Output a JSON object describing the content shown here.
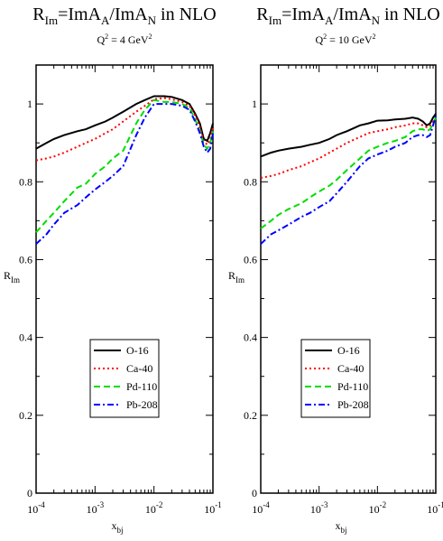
{
  "chart_data": [
    {
      "type": "line",
      "title": {
        "main": "R",
        "main_sub": "Im",
        "rest1": "=ImA",
        "rest1_sub": "A",
        "rest2": "/ImA",
        "rest2_sub": "N",
        "rest3": " in NLO"
      },
      "subtitle": {
        "q": "Q",
        "q_sup": "2",
        "value": " = 4 GeV",
        "value_sup": "2"
      },
      "xlabel": {
        "main": "x",
        "sub": "bj"
      },
      "ylabel": {
        "main": "R",
        "sub": "Im"
      },
      "xscale": "log",
      "xlim": [
        0.0001,
        0.1
      ],
      "ylim": [
        0,
        1.1
      ],
      "xticks": [
        {
          "value": 0.0001,
          "base": "10",
          "exp": "-4"
        },
        {
          "value": 0.001,
          "base": "10",
          "exp": "-3"
        },
        {
          "value": 0.01,
          "base": "10",
          "exp": "-2"
        },
        {
          "value": 0.1,
          "base": "10",
          "exp": "-1"
        }
      ],
      "yticks": [
        {
          "value": 0,
          "label": "0"
        },
        {
          "value": 0.2,
          "label": "0.2"
        },
        {
          "value": 0.4,
          "label": "0.4"
        },
        {
          "value": 0.6,
          "label": "0.6"
        },
        {
          "value": 0.8,
          "label": "0.8"
        },
        {
          "value": 1.0,
          "label": "1"
        }
      ],
      "grid": false,
      "legend_position": "lower-center",
      "series": [
        {
          "name": "O-16",
          "color": "#000000",
          "dash": "solid",
          "points": [
            [
              0.0001,
              0.885
            ],
            [
              0.00015,
              0.9
            ],
            [
              0.0002,
              0.91
            ],
            [
              0.0003,
              0.92
            ],
            [
              0.0005,
              0.93
            ],
            [
              0.0007,
              0.935
            ],
            [
              0.001,
              0.945
            ],
            [
              0.0015,
              0.955
            ],
            [
              0.002,
              0.965
            ],
            [
              0.003,
              0.98
            ],
            [
              0.005,
              1.0
            ],
            [
              0.007,
              1.01
            ],
            [
              0.01,
              1.02
            ],
            [
              0.015,
              1.02
            ],
            [
              0.02,
              1.018
            ],
            [
              0.03,
              1.01
            ],
            [
              0.04,
              1.0
            ],
            [
              0.05,
              0.975
            ],
            [
              0.06,
              0.95
            ],
            [
              0.07,
              0.91
            ],
            [
              0.08,
              0.905
            ],
            [
              0.09,
              0.925
            ],
            [
              0.1,
              0.95
            ]
          ]
        },
        {
          "name": "Ca-40",
          "color": "#ff0000",
          "dash": "dotted",
          "points": [
            [
              0.0001,
              0.855
            ],
            [
              0.00015,
              0.86
            ],
            [
              0.0002,
              0.865
            ],
            [
              0.0003,
              0.875
            ],
            [
              0.0005,
              0.89
            ],
            [
              0.0007,
              0.9
            ],
            [
              0.001,
              0.91
            ],
            [
              0.0015,
              0.925
            ],
            [
              0.002,
              0.935
            ],
            [
              0.003,
              0.955
            ],
            [
              0.005,
              0.98
            ],
            [
              0.007,
              0.995
            ],
            [
              0.01,
              1.012
            ],
            [
              0.015,
              1.015
            ],
            [
              0.02,
              1.012
            ],
            [
              0.03,
              1.005
            ],
            [
              0.04,
              0.995
            ],
            [
              0.05,
              0.97
            ],
            [
              0.06,
              0.94
            ],
            [
              0.07,
              0.905
            ],
            [
              0.08,
              0.895
            ],
            [
              0.09,
              0.91
            ],
            [
              0.1,
              0.94
            ]
          ]
        },
        {
          "name": "Pd-110",
          "color": "#00dd00",
          "dash": "dashed",
          "points": [
            [
              0.0001,
              0.67
            ],
            [
              0.00015,
              0.7
            ],
            [
              0.0002,
              0.72
            ],
            [
              0.0003,
              0.75
            ],
            [
              0.0005,
              0.785
            ],
            [
              0.0007,
              0.795
            ],
            [
              0.001,
              0.82
            ],
            [
              0.0015,
              0.84
            ],
            [
              0.002,
              0.86
            ],
            [
              0.003,
              0.88
            ],
            [
              0.005,
              0.95
            ],
            [
              0.007,
              0.985
            ],
            [
              0.01,
              1.01
            ],
            [
              0.015,
              1.005
            ],
            [
              0.02,
              1.005
            ],
            [
              0.03,
              1.0
            ],
            [
              0.04,
              0.99
            ],
            [
              0.05,
              0.96
            ],
            [
              0.06,
              0.93
            ],
            [
              0.07,
              0.895
            ],
            [
              0.08,
              0.885
            ],
            [
              0.09,
              0.9
            ],
            [
              0.1,
              0.93
            ]
          ]
        },
        {
          "name": "Pb-208",
          "color": "#0000ff",
          "dash": "dashdot",
          "points": [
            [
              0.0001,
              0.64
            ],
            [
              0.00015,
              0.665
            ],
            [
              0.0002,
              0.69
            ],
            [
              0.0003,
              0.72
            ],
            [
              0.0005,
              0.74
            ],
            [
              0.0007,
              0.76
            ],
            [
              0.001,
              0.78
            ],
            [
              0.0015,
              0.8
            ],
            [
              0.002,
              0.815
            ],
            [
              0.003,
              0.84
            ],
            [
              0.005,
              0.92
            ],
            [
              0.007,
              0.965
            ],
            [
              0.01,
              1.0
            ],
            [
              0.015,
              1.0
            ],
            [
              0.02,
              1.0
            ],
            [
              0.03,
              0.995
            ],
            [
              0.04,
              0.985
            ],
            [
              0.05,
              0.955
            ],
            [
              0.06,
              0.925
            ],
            [
              0.07,
              0.89
            ],
            [
              0.08,
              0.875
            ],
            [
              0.09,
              0.885
            ],
            [
              0.1,
              0.925
            ]
          ]
        }
      ]
    },
    {
      "type": "line",
      "title": {
        "main": "R",
        "main_sub": "Im",
        "rest1": "=ImA",
        "rest1_sub": "A",
        "rest2": "/ImA",
        "rest2_sub": "N",
        "rest3": " in NLO"
      },
      "subtitle": {
        "q": "Q",
        "q_sup": "2",
        "value": " = 10 GeV",
        "value_sup": "2"
      },
      "xlabel": {
        "main": "x",
        "sub": "bj"
      },
      "ylabel": {
        "main": "R",
        "sub": "Im"
      },
      "xscale": "log",
      "xlim": [
        0.0001,
        0.1
      ],
      "ylim": [
        0,
        1.1
      ],
      "xticks": [
        {
          "value": 0.0001,
          "base": "10",
          "exp": "-4"
        },
        {
          "value": 0.001,
          "base": "10",
          "exp": "-3"
        },
        {
          "value": 0.01,
          "base": "10",
          "exp": "-2"
        },
        {
          "value": 0.1,
          "base": "10",
          "exp": "-1"
        }
      ],
      "yticks": [
        {
          "value": 0,
          "label": "0"
        },
        {
          "value": 0.2,
          "label": "0.2"
        },
        {
          "value": 0.4,
          "label": "0.4"
        },
        {
          "value": 0.6,
          "label": "0.6"
        },
        {
          "value": 0.8,
          "label": "0.8"
        },
        {
          "value": 1.0,
          "label": "1"
        }
      ],
      "grid": false,
      "legend_position": "lower-center",
      "series": [
        {
          "name": "O-16",
          "color": "#000000",
          "dash": "solid",
          "points": [
            [
              0.0001,
              0.865
            ],
            [
              0.00015,
              0.875
            ],
            [
              0.0002,
              0.88
            ],
            [
              0.0003,
              0.885
            ],
            [
              0.0005,
              0.89
            ],
            [
              0.0007,
              0.895
            ],
            [
              0.001,
              0.9
            ],
            [
              0.0015,
              0.91
            ],
            [
              0.002,
              0.92
            ],
            [
              0.003,
              0.93
            ],
            [
              0.005,
              0.945
            ],
            [
              0.007,
              0.95
            ],
            [
              0.01,
              0.957
            ],
            [
              0.015,
              0.958
            ],
            [
              0.02,
              0.96
            ],
            [
              0.03,
              0.962
            ],
            [
              0.04,
              0.965
            ],
            [
              0.05,
              0.962
            ],
            [
              0.06,
              0.955
            ],
            [
              0.07,
              0.945
            ],
            [
              0.08,
              0.95
            ],
            [
              0.09,
              0.965
            ],
            [
              0.1,
              0.975
            ]
          ]
        },
        {
          "name": "Ca-40",
          "color": "#ff0000",
          "dash": "dotted",
          "points": [
            [
              0.0001,
              0.81
            ],
            [
              0.00015,
              0.815
            ],
            [
              0.0002,
              0.82
            ],
            [
              0.0003,
              0.83
            ],
            [
              0.0005,
              0.84
            ],
            [
              0.0007,
              0.85
            ],
            [
              0.001,
              0.86
            ],
            [
              0.0015,
              0.875
            ],
            [
              0.002,
              0.885
            ],
            [
              0.003,
              0.9
            ],
            [
              0.005,
              0.915
            ],
            [
              0.007,
              0.925
            ],
            [
              0.01,
              0.93
            ],
            [
              0.015,
              0.935
            ],
            [
              0.02,
              0.94
            ],
            [
              0.03,
              0.945
            ],
            [
              0.04,
              0.95
            ],
            [
              0.05,
              0.95
            ],
            [
              0.06,
              0.945
            ],
            [
              0.07,
              0.94
            ],
            [
              0.08,
              0.945
            ],
            [
              0.09,
              0.955
            ],
            [
              0.1,
              0.96
            ]
          ]
        },
        {
          "name": "Pd-110",
          "color": "#00dd00",
          "dash": "dashed",
          "points": [
            [
              0.0001,
              0.68
            ],
            [
              0.00015,
              0.7
            ],
            [
              0.0002,
              0.715
            ],
            [
              0.0003,
              0.73
            ],
            [
              0.0005,
              0.745
            ],
            [
              0.0007,
              0.76
            ],
            [
              0.001,
              0.775
            ],
            [
              0.0015,
              0.79
            ],
            [
              0.002,
              0.805
            ],
            [
              0.003,
              0.83
            ],
            [
              0.005,
              0.86
            ],
            [
              0.007,
              0.88
            ],
            [
              0.01,
              0.89
            ],
            [
              0.015,
              0.9
            ],
            [
              0.02,
              0.905
            ],
            [
              0.03,
              0.915
            ],
            [
              0.04,
              0.93
            ],
            [
              0.05,
              0.935
            ],
            [
              0.06,
              0.935
            ],
            [
              0.07,
              0.93
            ],
            [
              0.08,
              0.935
            ],
            [
              0.09,
              0.95
            ],
            [
              0.1,
              0.965
            ]
          ]
        },
        {
          "name": "Pb-208",
          "color": "#0000ff",
          "dash": "dashdot",
          "points": [
            [
              0.0001,
              0.64
            ],
            [
              0.00015,
              0.665
            ],
            [
              0.0002,
              0.675
            ],
            [
              0.0003,
              0.69
            ],
            [
              0.0005,
              0.71
            ],
            [
              0.0007,
              0.72
            ],
            [
              0.001,
              0.735
            ],
            [
              0.0015,
              0.75
            ],
            [
              0.002,
              0.77
            ],
            [
              0.003,
              0.8
            ],
            [
              0.005,
              0.84
            ],
            [
              0.007,
              0.86
            ],
            [
              0.01,
              0.87
            ],
            [
              0.015,
              0.88
            ],
            [
              0.02,
              0.89
            ],
            [
              0.03,
              0.9
            ],
            [
              0.04,
              0.915
            ],
            [
              0.05,
              0.92
            ],
            [
              0.06,
              0.92
            ],
            [
              0.07,
              0.915
            ],
            [
              0.08,
              0.92
            ],
            [
              0.09,
              0.945
            ],
            [
              0.1,
              0.97
            ]
          ]
        }
      ]
    }
  ]
}
